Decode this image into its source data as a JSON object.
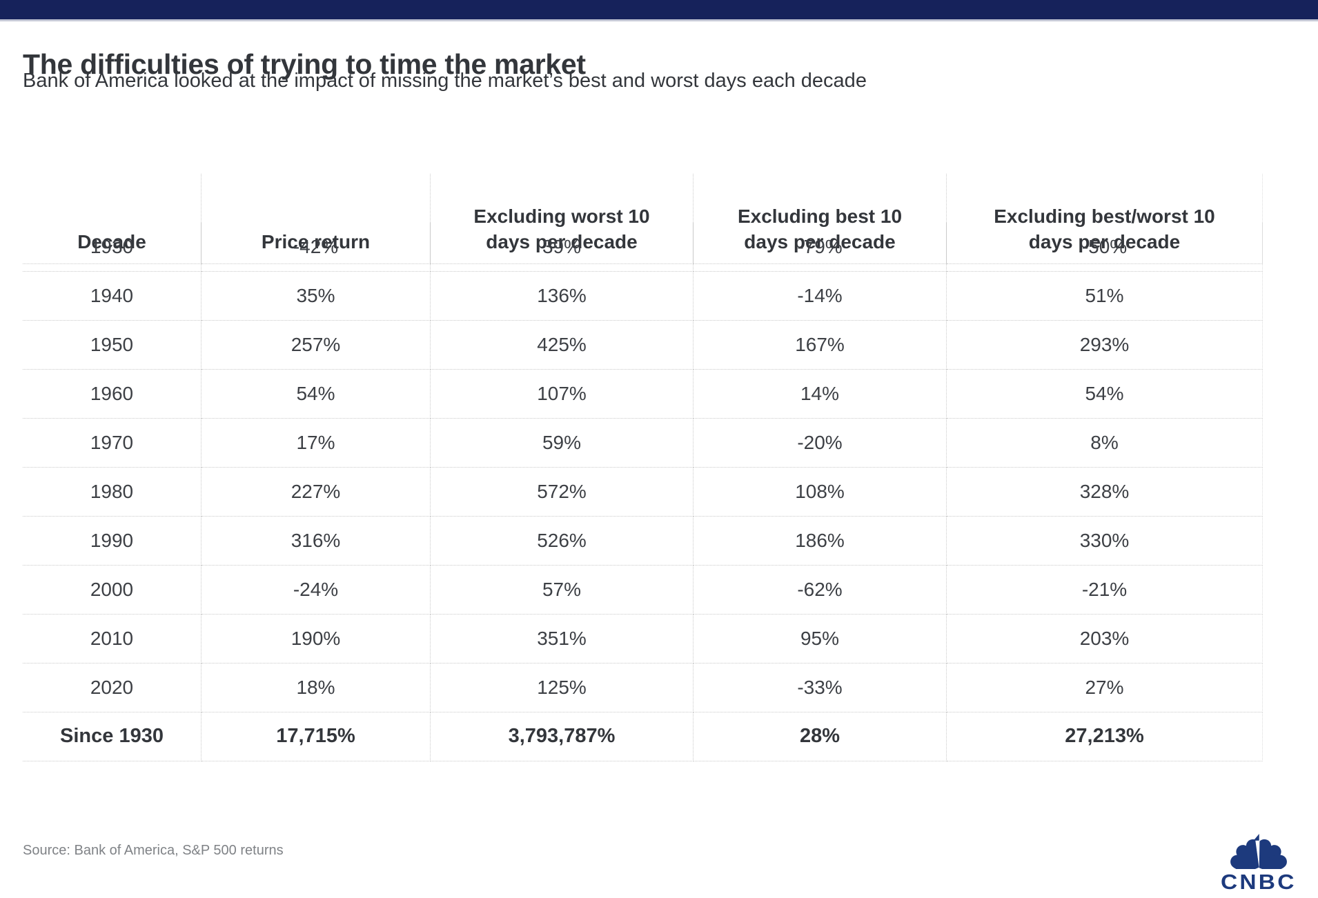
{
  "topbar": {
    "color": "#16225b"
  },
  "chart_data": {
    "type": "table",
    "title": "The difficulties of trying to time the market",
    "subtitle": "Bank of America looked at the impact of missing the market’s best and worst days each decade",
    "columns": [
      "Decade",
      "Price return",
      "Excluding worst 10\ndays per decade",
      "Excluding best 10\ndays per decade",
      "Excluding best/worst 10\ndays per decade"
    ],
    "rows": [
      [
        "1930",
        "-42%",
        "39%",
        "-79%",
        "-50%"
      ],
      [
        "1940",
        "35%",
        "136%",
        "-14%",
        "51%"
      ],
      [
        "1950",
        "257%",
        "425%",
        "167%",
        "293%"
      ],
      [
        "1960",
        "54%",
        "107%",
        "14%",
        "54%"
      ],
      [
        "1970",
        "17%",
        "59%",
        "-20%",
        "8%"
      ],
      [
        "1980",
        "227%",
        "572%",
        "108%",
        "328%"
      ],
      [
        "1990",
        "316%",
        "526%",
        "186%",
        "330%"
      ],
      [
        "2000",
        "-24%",
        "57%",
        "-62%",
        "-21%"
      ],
      [
        "2010",
        "190%",
        "351%",
        "95%",
        "203%"
      ],
      [
        "2020",
        "18%",
        "125%",
        "-33%",
        "27%"
      ]
    ],
    "total_row": [
      "Since 1930",
      "17,715%",
      "3,793,787%",
      "28%",
      "27,213%"
    ],
    "grid": "dotted",
    "source": "Source: Bank of America, S&P 500 returns"
  },
  "brand": {
    "logo_text": "CNBC",
    "logo_color": "#1d3a7d"
  },
  "colors": {
    "top_bar": "#16225b",
    "top_bar_underline": "#c5c8d6",
    "title_text": "#33363b",
    "body_text": "#3d4045",
    "grid_line": "#c9c9c9",
    "source_text": "#7f8286"
  }
}
